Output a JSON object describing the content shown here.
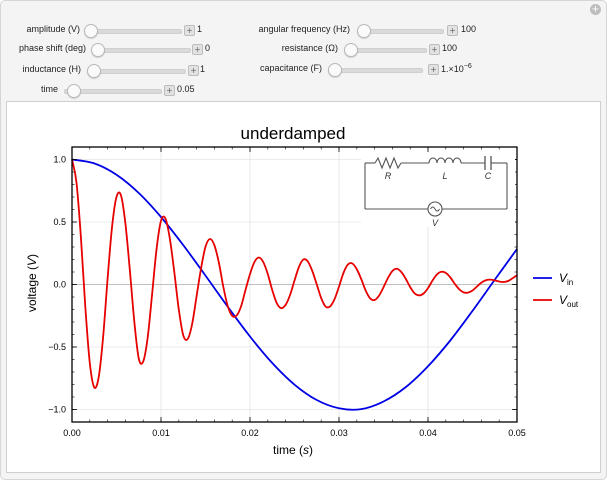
{
  "controls": {
    "amplitude": {
      "label": "amplitude (V)",
      "value": "1"
    },
    "phase_shift": {
      "label": "phase shift (deg)",
      "value": "0"
    },
    "inductance": {
      "label": "inductance (H)",
      "value": "1"
    },
    "time": {
      "label": "time",
      "value": "0.05"
    },
    "angular_frequency": {
      "label": "angular frequency (Hz)",
      "value": "100"
    },
    "resistance": {
      "label": "resistance (Ω)",
      "value": "100"
    },
    "capacitance": {
      "label": "capacitance (F)",
      "value": "1.×10",
      "exponent": "−6"
    }
  },
  "plus_symbol": "+",
  "chart_data": {
    "type": "line",
    "title": "underdamped",
    "xlabel": "time",
    "xlabel_unit": "s",
    "ylabel": "voltage",
    "ylabel_unit": "V",
    "xlim": [
      0,
      0.05
    ],
    "ylim": [
      -1.1,
      1.1
    ],
    "xticks": [
      "0.00",
      "0.01",
      "0.02",
      "0.03",
      "0.04",
      "0.05"
    ],
    "yticks": [
      "1.0",
      "0.5",
      "0.0",
      "−0.5",
      "−1.0"
    ],
    "grid": true,
    "legend_position": "right",
    "series": [
      {
        "name": "V",
        "subscript": "in",
        "color": "#0000e6",
        "x": [
          0,
          0.0025,
          0.005,
          0.0075,
          0.01,
          0.0125,
          0.015,
          0.0175,
          0.02,
          0.0225,
          0.025,
          0.0275,
          0.03,
          0.0325,
          0.035,
          0.0375,
          0.04,
          0.0425,
          0.045,
          0.0475,
          0.05
        ],
        "y": [
          1.0,
          0.969,
          0.878,
          0.732,
          0.54,
          0.315,
          0.071,
          -0.178,
          -0.416,
          -0.628,
          -0.801,
          -0.924,
          -0.99,
          -0.997,
          -0.936,
          -0.821,
          -0.654,
          -0.448,
          -0.211,
          0.038,
          0.284
        ]
      },
      {
        "name": "V",
        "subscript": "out",
        "color": "#e60000",
        "x": [
          0,
          0.0005,
          0.001,
          0.0015,
          0.002,
          0.0025,
          0.003,
          0.0035,
          0.004,
          0.0045,
          0.005,
          0.0055,
          0.006,
          0.0065,
          0.007,
          0.0075,
          0.008,
          0.0085,
          0.009,
          0.0095,
          0.01,
          0.0105,
          0.011,
          0.0115,
          0.012,
          0.0125,
          0.013,
          0.0135,
          0.014,
          0.0145,
          0.015,
          0.0155,
          0.016,
          0.0165,
          0.017,
          0.0175,
          0.018,
          0.0185,
          0.019,
          0.0195,
          0.02,
          0.0205,
          0.021,
          0.0215,
          0.022,
          0.0225,
          0.023,
          0.0235,
          0.024,
          0.0245,
          0.025,
          0.0255,
          0.026,
          0.0265,
          0.027,
          0.0275,
          0.028,
          0.0285,
          0.029,
          0.0295,
          0.03,
          0.0305,
          0.031,
          0.0315,
          0.032,
          0.0325,
          0.033,
          0.0335,
          0.034,
          0.0345,
          0.035,
          0.0355,
          0.036,
          0.0365,
          0.037,
          0.0375,
          0.038,
          0.0385,
          0.039,
          0.0395,
          0.04,
          0.0405,
          0.041,
          0.0415,
          0.042,
          0.0425,
          0.043,
          0.0435,
          0.044,
          0.0445,
          0.045,
          0.0455,
          0.046,
          0.0465,
          0.047,
          0.0475,
          0.048,
          0.0485,
          0.049,
          0.0495,
          0.05
        ],
        "y": [
          1.0,
          0.818,
          0.379,
          -0.184,
          -0.628,
          -0.823,
          -0.741,
          -0.417,
          0.047,
          0.461,
          0.701,
          0.714,
          0.488,
          0.114,
          -0.296,
          -0.592,
          -0.616,
          -0.426,
          -0.078,
          0.283,
          0.51,
          0.528,
          0.364,
          0.096,
          -0.2,
          -0.406,
          -0.436,
          -0.316,
          -0.093,
          0.129,
          0.302,
          0.364,
          0.314,
          0.176,
          -0.018,
          -0.173,
          -0.251,
          -0.248,
          -0.174,
          -0.042,
          0.083,
          0.18,
          0.216,
          0.178,
          0.083,
          -0.045,
          -0.148,
          -0.189,
          -0.163,
          -0.084,
          0.032,
          0.141,
          0.2,
          0.184,
          0.108,
          0.001,
          -0.109,
          -0.177,
          -0.175,
          -0.117,
          -0.017,
          0.092,
          0.16,
          0.168,
          0.122,
          0.043,
          -0.049,
          -0.111,
          -0.124,
          -0.089,
          -0.022,
          0.052,
          0.108,
          0.126,
          0.1,
          0.046,
          -0.021,
          -0.071,
          -0.087,
          -0.072,
          -0.029,
          0.031,
          0.08,
          0.102,
          0.093,
          0.057,
          0.006,
          -0.038,
          -0.063,
          -0.065,
          -0.048,
          -0.016,
          0.015,
          0.034,
          0.039,
          0.033,
          0.024,
          0.02,
          0.028,
          0.05,
          0.075
        ]
      }
    ],
    "circuit": {
      "R": "R",
      "L": "L",
      "C": "C",
      "V": "V"
    }
  }
}
